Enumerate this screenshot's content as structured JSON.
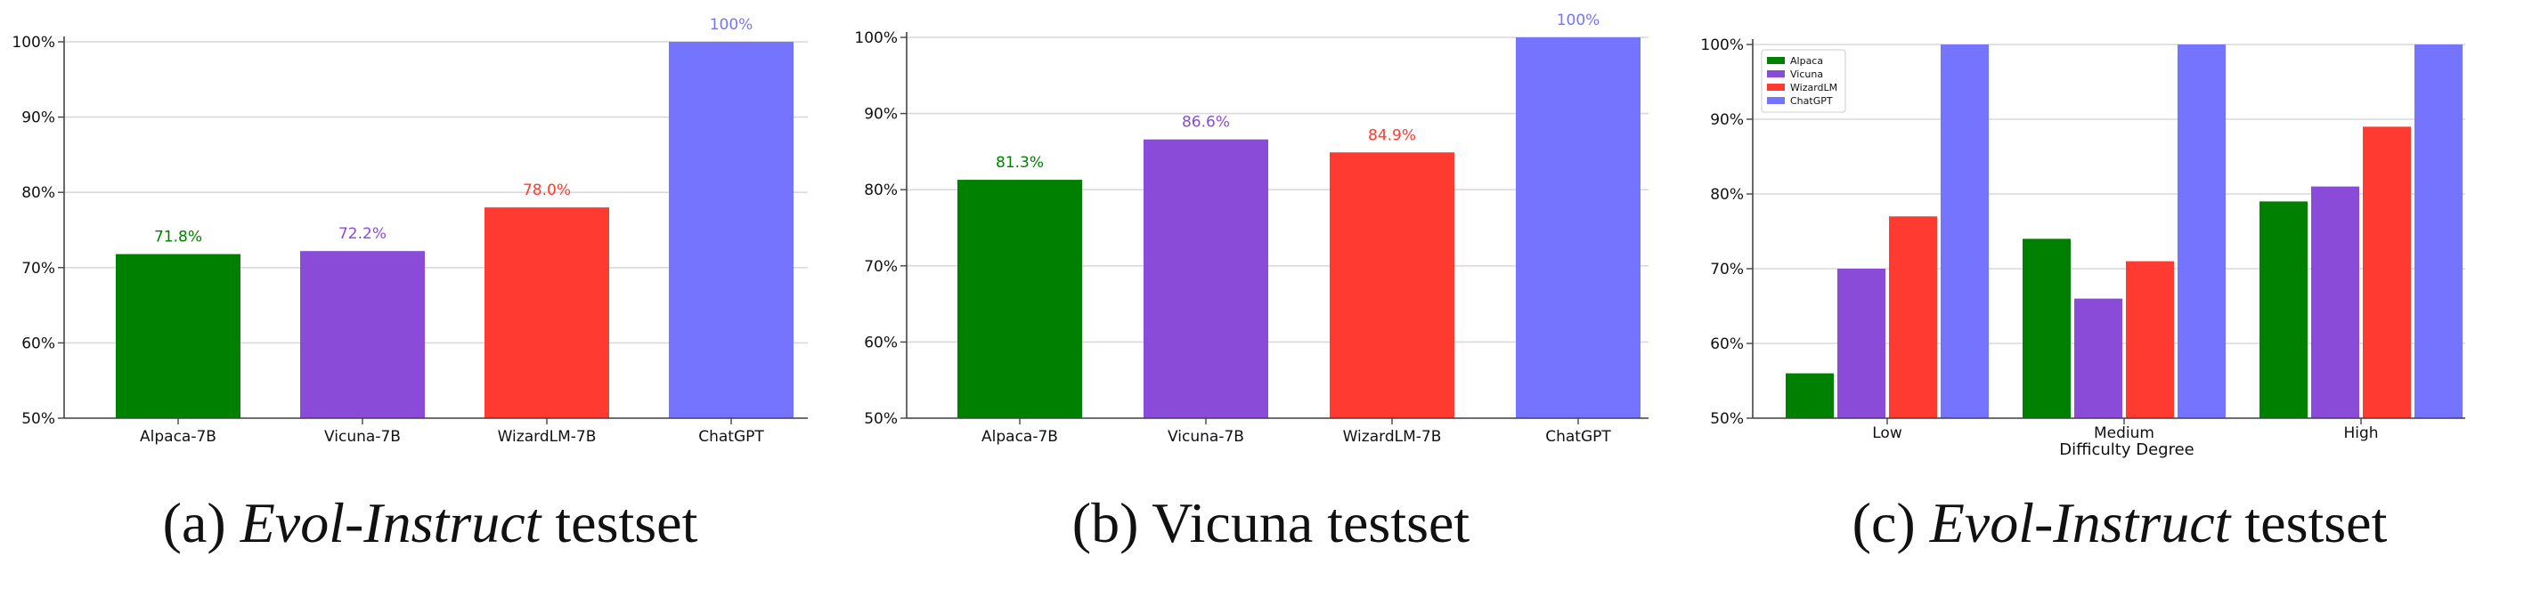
{
  "colors": {
    "alpaca": "#008000",
    "vicuna": "#8a4cd8",
    "wizardlm": "#ff3a30",
    "chatgpt": "#7474ff",
    "grid": "#d9d9d9",
    "axis": "#444444",
    "text": "#111111"
  },
  "captions": [
    {
      "prefix": "(a) ",
      "italic": "Evol-Instruct",
      "suffix": " testset"
    },
    {
      "prefix": "(b) Vicuna testset",
      "italic": "",
      "suffix": ""
    },
    {
      "prefix": "(c) ",
      "italic": "Evol-Instruct",
      "suffix": " testset"
    }
  ],
  "chart_data": [
    {
      "type": "bar",
      "categories": [
        "Alpaca-7B",
        "Vicuna-7B",
        "WizardLM-7B",
        "ChatGPT"
      ],
      "values": [
        71.8,
        72.2,
        78.0,
        100
      ],
      "value_labels": [
        "71.8%",
        "72.2%",
        "78.0%",
        "100%"
      ],
      "bar_colors": [
        "alpaca",
        "vicuna",
        "wizardlm",
        "chatgpt"
      ],
      "ylim": [
        50,
        100
      ],
      "yticks": [
        50,
        60,
        70,
        80,
        90,
        100
      ],
      "ytick_labels": [
        "50%",
        "60%",
        "70%",
        "80%",
        "90%",
        "100%"
      ],
      "grid": true,
      "xlabel": ""
    },
    {
      "type": "bar",
      "categories": [
        "Alpaca-7B",
        "Vicuna-7B",
        "WizardLM-7B",
        "ChatGPT"
      ],
      "values": [
        81.3,
        86.6,
        84.9,
        100
      ],
      "value_labels": [
        "81.3%",
        "86.6%",
        "84.9%",
        "100%"
      ],
      "bar_colors": [
        "alpaca",
        "vicuna",
        "wizardlm",
        "chatgpt"
      ],
      "ylim": [
        50,
        100
      ],
      "yticks": [
        50,
        60,
        70,
        80,
        90,
        100
      ],
      "ytick_labels": [
        "50%",
        "60%",
        "70%",
        "80%",
        "90%",
        "100%"
      ],
      "grid": true,
      "xlabel": ""
    },
    {
      "type": "bar",
      "categories": [
        "Low",
        "Medium",
        "High"
      ],
      "series": [
        {
          "name": "Alpaca",
          "color": "alpaca",
          "values": [
            56,
            74,
            79
          ]
        },
        {
          "name": "Vicuna",
          "color": "vicuna",
          "values": [
            70,
            66,
            81
          ]
        },
        {
          "name": "WizardLM",
          "color": "wizardlm",
          "values": [
            77,
            71,
            89
          ]
        },
        {
          "name": "ChatGPT",
          "color": "chatgpt",
          "values": [
            100,
            100,
            100
          ]
        }
      ],
      "ylim": [
        50,
        100
      ],
      "yticks": [
        50,
        60,
        70,
        80,
        90,
        100
      ],
      "ytick_labels": [
        "50%",
        "60%",
        "70%",
        "80%",
        "90%",
        "100%"
      ],
      "grid": true,
      "legend": "top-left",
      "xlabel": "Difficulty Degree"
    }
  ]
}
